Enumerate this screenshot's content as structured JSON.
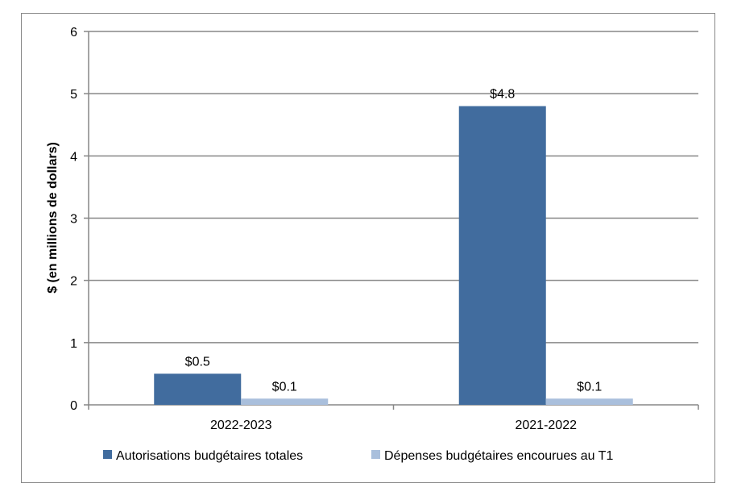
{
  "chart_data": {
    "type": "bar",
    "title": "",
    "xlabel": "",
    "ylabel": "$ (en millions de dollars)",
    "ylim": [
      0,
      6
    ],
    "yticks": [
      "0",
      "1",
      "2",
      "3",
      "4",
      "5",
      "6"
    ],
    "categories": [
      "2022-2023",
      "2021-2022"
    ],
    "series": [
      {
        "name": "Autorisations budgétaires totales",
        "values": [
          0.5,
          4.8
        ],
        "labels": [
          "$0.5",
          "$4.8"
        ],
        "color": "#416c9e"
      },
      {
        "name": "Dépenses budgétaires encourues au T1",
        "values": [
          0.1,
          0.1
        ],
        "labels": [
          "$0.1",
          "$0.1"
        ],
        "color": "#a9bfdc"
      }
    ],
    "grid": true,
    "legend": "bottom"
  }
}
